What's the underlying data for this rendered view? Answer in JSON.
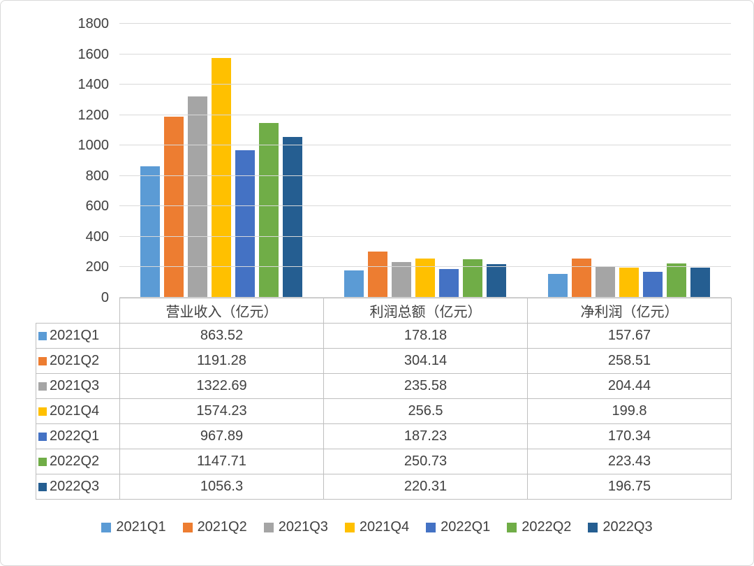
{
  "chart_data": {
    "type": "bar",
    "title": "",
    "categories": [
      "营业收入（亿元）",
      "利润总额（亿元）",
      "净利润（亿元）"
    ],
    "series": [
      {
        "name": "2021Q1",
        "color": "#5B9BD5",
        "values": [
          863.52,
          178.18,
          157.67
        ]
      },
      {
        "name": "2021Q2",
        "color": "#ED7D31",
        "values": [
          1191.28,
          304.14,
          258.51
        ]
      },
      {
        "name": "2021Q3",
        "color": "#A5A5A5",
        "values": [
          1322.69,
          235.58,
          204.44
        ]
      },
      {
        "name": "2021Q4",
        "color": "#FFC000",
        "values": [
          1574.23,
          256.5,
          199.8
        ]
      },
      {
        "name": "2022Q1",
        "color": "#4472C4",
        "values": [
          967.89,
          187.23,
          170.34
        ]
      },
      {
        "name": "2022Q2",
        "color": "#70AD47",
        "values": [
          1147.71,
          250.73,
          223.43
        ]
      },
      {
        "name": "2022Q3",
        "color": "#255E91",
        "values": [
          1056.3,
          220.31,
          196.75
        ]
      }
    ],
    "y_axis": {
      "min": 0,
      "max": 1800,
      "step": 200
    },
    "grid": true,
    "legend_position": "bottom",
    "show_data_table": true,
    "colors": {
      "gridline": "#D9D9D9",
      "table_border": "#BFBFBF",
      "text": "#404040",
      "background": "#FFFFFF"
    }
  }
}
